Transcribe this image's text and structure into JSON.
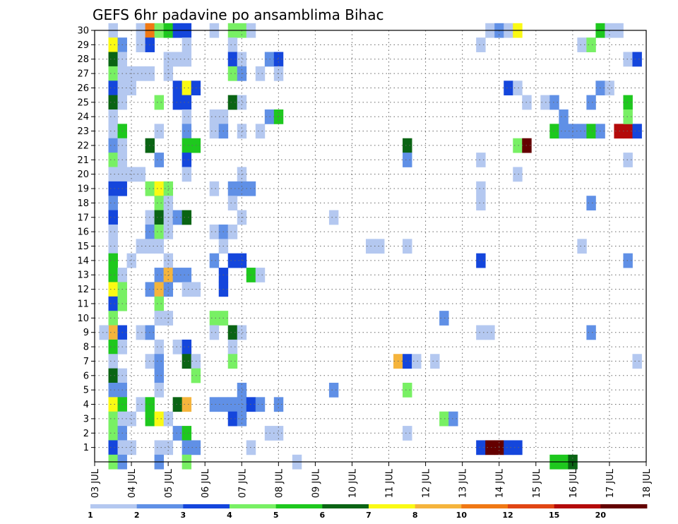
{
  "chart_data": {
    "type": "heatmap",
    "title": "GEFS 6hr padavine po ansamblima Bihac",
    "x_tick_labels": [
      "03 JUL",
      "04 JUL",
      "05 JUL",
      "06 JUL",
      "07 JUL",
      "08 JUL",
      "09 JUL",
      "10 JUL",
      "11 JUL",
      "12 JUL",
      "13 JUL",
      "14 JUL",
      "15 JUL",
      "16 JUL",
      "17 JUL",
      "18 JUL"
    ],
    "x_range_days": [
      0,
      15
    ],
    "y_tick_labels": [
      "1",
      "2",
      "3",
      "4",
      "5",
      "6",
      "7",
      "8",
      "9",
      "10",
      "11",
      "12",
      "13",
      "14",
      "15",
      "16",
      "17",
      "18",
      "19",
      "20",
      "21",
      "22",
      "23",
      "24",
      "25",
      "26",
      "27",
      "28",
      "29",
      "30"
    ],
    "y_range": [
      0,
      30
    ],
    "grid": "dotted",
    "colorbar": {
      "tick_labels": [
        "1",
        "2",
        "3",
        "4",
        "5",
        "6",
        "7",
        "8",
        "10",
        "12",
        "15",
        "20"
      ],
      "bins": [
        {
          "min": 1,
          "max": 2,
          "color": "#b4c8f0"
        },
        {
          "min": 2,
          "max": 3,
          "color": "#6090e6"
        },
        {
          "min": 3,
          "max": 4,
          "color": "#1446dc"
        },
        {
          "min": 4,
          "max": 5,
          "color": "#78f064"
        },
        {
          "min": 5,
          "max": 6,
          "color": "#1ec81e"
        },
        {
          "min": 6,
          "max": 7,
          "color": "#0a6414"
        },
        {
          "min": 7,
          "max": 8,
          "color": "#fafa14"
        },
        {
          "min": 8,
          "max": 10,
          "color": "#f5b43c"
        },
        {
          "min": 10,
          "max": 12,
          "color": "#f07814"
        },
        {
          "min": 12,
          "max": 15,
          "color": "#e14614"
        },
        {
          "min": 15,
          "max": 20,
          "color": "#b40a0a"
        },
        {
          "min": 20,
          "max": 30,
          "color": "#640000"
        }
      ]
    },
    "cells": [
      [
        0.5,
        30,
        1.5
      ],
      [
        0.5,
        29,
        7.5
      ],
      [
        0.5,
        28,
        6.5
      ],
      [
        0.5,
        27,
        4.5
      ],
      [
        0.5,
        26,
        3.5
      ],
      [
        0.5,
        25,
        6.5
      ],
      [
        0.5,
        24,
        1.5
      ],
      [
        0.5,
        23,
        1.5
      ],
      [
        0.5,
        22,
        2.5
      ],
      [
        0.5,
        21,
        4.5
      ],
      [
        0.5,
        20,
        1.5
      ],
      [
        0.5,
        19,
        3.5
      ],
      [
        0.5,
        18,
        2.5
      ],
      [
        0.5,
        17,
        3.5
      ],
      [
        0.5,
        16,
        1.5
      ],
      [
        0.5,
        15,
        1.5
      ],
      [
        0.5,
        14,
        5.5
      ],
      [
        0.5,
        13,
        5.5
      ],
      [
        0.5,
        12,
        7.5
      ],
      [
        0.5,
        11,
        3.5
      ],
      [
        0.5,
        10,
        4.5
      ],
      [
        0.5,
        9,
        9
      ],
      [
        0.5,
        8,
        5.5
      ],
      [
        0.5,
        7,
        1.5
      ],
      [
        0.5,
        6,
        6.5
      ],
      [
        0.5,
        5,
        2.5
      ],
      [
        0.5,
        4,
        7.5
      ],
      [
        0.5,
        3,
        4.5
      ],
      [
        0.5,
        2,
        4.5
      ],
      [
        0.5,
        1,
        3.5
      ],
      [
        0.5,
        0,
        4.5
      ],
      [
        0.75,
        29,
        2.5
      ],
      [
        0.75,
        28,
        1.5
      ],
      [
        0.75,
        27,
        1.5
      ],
      [
        0.75,
        26,
        1.5
      ],
      [
        0.75,
        25,
        1.5
      ],
      [
        0.75,
        23,
        5.5
      ],
      [
        0.75,
        22,
        1.5
      ],
      [
        0.75,
        21,
        1.5
      ],
      [
        0.75,
        20,
        1.5
      ],
      [
        0.75,
        19,
        3.5
      ],
      [
        0.75,
        13,
        1.5
      ],
      [
        0.75,
        12,
        4.5
      ],
      [
        0.75,
        11,
        4.5
      ],
      [
        0.75,
        9,
        3.5
      ],
      [
        0.75,
        8,
        1.5
      ],
      [
        0.75,
        6,
        1.5
      ],
      [
        0.75,
        5,
        2.5
      ],
      [
        0.75,
        4,
        5.5
      ],
      [
        0.75,
        3,
        1.5
      ],
      [
        0.75,
        2,
        2.5
      ],
      [
        0.75,
        1,
        1.5
      ],
      [
        0.75,
        0,
        2.5
      ],
      [
        0.25,
        9,
        1.5
      ],
      [
        1.0,
        27,
        1.5
      ],
      [
        1.0,
        26,
        1.5
      ],
      [
        1.0,
        20,
        1.5
      ],
      [
        1.0,
        14,
        1.5
      ],
      [
        1.0,
        3,
        1.5
      ],
      [
        1.0,
        1,
        1.5
      ],
      [
        1.25,
        30,
        1.5
      ],
      [
        1.25,
        29,
        1.5
      ],
      [
        1.25,
        27,
        1.5
      ],
      [
        1.25,
        20,
        1.5
      ],
      [
        1.25,
        15,
        1.5
      ],
      [
        1.25,
        9,
        1.5
      ],
      [
        1.25,
        4,
        1.5
      ],
      [
        1.5,
        30,
        10
      ],
      [
        1.5,
        29,
        3.5
      ],
      [
        1.5,
        27,
        1.5
      ],
      [
        1.5,
        22,
        6.5
      ],
      [
        1.5,
        19,
        4.5
      ],
      [
        1.5,
        17,
        1.5
      ],
      [
        1.5,
        16,
        2.5
      ],
      [
        1.5,
        15,
        1.5
      ],
      [
        1.5,
        12,
        2.5
      ],
      [
        1.5,
        9,
        2.5
      ],
      [
        1.5,
        7,
        1.5
      ],
      [
        1.5,
        4,
        5.5
      ],
      [
        1.5,
        3,
        5.5
      ],
      [
        1.75,
        30,
        4.5
      ],
      [
        1.75,
        25,
        4.5
      ],
      [
        1.75,
        23,
        1.5
      ],
      [
        1.75,
        21,
        2.5
      ],
      [
        1.75,
        19,
        7.5
      ],
      [
        1.75,
        18,
        4.5
      ],
      [
        1.75,
        17,
        6.5
      ],
      [
        1.75,
        16,
        4.5
      ],
      [
        1.75,
        15,
        1.5
      ],
      [
        1.75,
        13,
        2.5
      ],
      [
        1.75,
        12,
        9
      ],
      [
        1.75,
        11,
        4.5
      ],
      [
        1.75,
        10,
        1.5
      ],
      [
        1.75,
        8,
        1.5
      ],
      [
        1.75,
        7,
        2.5
      ],
      [
        1.75,
        6,
        2.5
      ],
      [
        1.75,
        5,
        1.5
      ],
      [
        1.75,
        3,
        7.5
      ],
      [
        1.75,
        1,
        1.5
      ],
      [
        1.75,
        0,
        2.5
      ],
      [
        2.0,
        30,
        5.5
      ],
      [
        2.0,
        28,
        1.5
      ],
      [
        2.0,
        27,
        1.5
      ],
      [
        2.0,
        19,
        4.5
      ],
      [
        2.0,
        18,
        1.5
      ],
      [
        2.0,
        17,
        1.5
      ],
      [
        2.0,
        16,
        1.5
      ],
      [
        2.0,
        14,
        1.5
      ],
      [
        2.0,
        13,
        9
      ],
      [
        2.0,
        12,
        2.5
      ],
      [
        2.0,
        10,
        1.5
      ],
      [
        2.0,
        3,
        1.5
      ],
      [
        2.0,
        1,
        1.5
      ],
      [
        2.25,
        30,
        3.5
      ],
      [
        2.25,
        28,
        1.5
      ],
      [
        2.25,
        26,
        3.5
      ],
      [
        2.25,
        25,
        3.5
      ],
      [
        2.25,
        17,
        2.5
      ],
      [
        2.25,
        13,
        2.5
      ],
      [
        2.25,
        8,
        1.5
      ],
      [
        2.25,
        4,
        6.5
      ],
      [
        2.25,
        2,
        2.5
      ],
      [
        2.5,
        30,
        3.5
      ],
      [
        2.5,
        29,
        1.5
      ],
      [
        2.5,
        28,
        1.5
      ],
      [
        2.5,
        26,
        7.5
      ],
      [
        2.5,
        25,
        3.5
      ],
      [
        2.5,
        24,
        1.5
      ],
      [
        2.5,
        23,
        2.5
      ],
      [
        2.5,
        22,
        5.5
      ],
      [
        2.5,
        21,
        3.5
      ],
      [
        2.5,
        20,
        1.5
      ],
      [
        2.5,
        17,
        6.5
      ],
      [
        2.5,
        13,
        2.5
      ],
      [
        2.5,
        12,
        1.5
      ],
      [
        2.5,
        8,
        3.5
      ],
      [
        2.5,
        7,
        6.5
      ],
      [
        2.5,
        4,
        9
      ],
      [
        2.5,
        2,
        5.5
      ],
      [
        2.5,
        1,
        2.5
      ],
      [
        2.5,
        0,
        4.5
      ],
      [
        2.75,
        26,
        3.5
      ],
      [
        2.75,
        22,
        5.5
      ],
      [
        2.75,
        12,
        1.5
      ],
      [
        2.75,
        7,
        1.5
      ],
      [
        2.75,
        6,
        4.5
      ],
      [
        2.75,
        1,
        2.5
      ],
      [
        3.25,
        30,
        1.5
      ],
      [
        3.25,
        24,
        1.5
      ],
      [
        3.25,
        23,
        1.5
      ],
      [
        3.25,
        19,
        1.5
      ],
      [
        3.25,
        16,
        1.5
      ],
      [
        3.25,
        14,
        2.5
      ],
      [
        3.25,
        10,
        4.5
      ],
      [
        3.25,
        9,
        1.5
      ],
      [
        3.25,
        4,
        2.5
      ],
      [
        3.5,
        24,
        1.5
      ],
      [
        3.5,
        23,
        2.5
      ],
      [
        3.5,
        16,
        2.5
      ],
      [
        3.5,
        15,
        1.5
      ],
      [
        3.5,
        13,
        3.5
      ],
      [
        3.5,
        12,
        3.5
      ],
      [
        3.5,
        10,
        4.5
      ],
      [
        3.5,
        4,
        2.5
      ],
      [
        3.75,
        30,
        4.5
      ],
      [
        3.75,
        29,
        1.5
      ],
      [
        3.75,
        28,
        3.5
      ],
      [
        3.75,
        27,
        4.5
      ],
      [
        3.75,
        25,
        6.5
      ],
      [
        3.75,
        19,
        2.5
      ],
      [
        3.75,
        18,
        1.5
      ],
      [
        3.75,
        16,
        1.5
      ],
      [
        3.75,
        14,
        3.5
      ],
      [
        3.75,
        9,
        6.5
      ],
      [
        3.75,
        8,
        1.5
      ],
      [
        3.75,
        7,
        4.5
      ],
      [
        3.75,
        4,
        2.5
      ],
      [
        3.75,
        3,
        3.5
      ],
      [
        4.0,
        30,
        4.5
      ],
      [
        4.0,
        28,
        1.5
      ],
      [
        4.0,
        27,
        2.5
      ],
      [
        4.0,
        25,
        1.5
      ],
      [
        4.0,
        23,
        1.5
      ],
      [
        4.0,
        20,
        1.5
      ],
      [
        4.0,
        19,
        2.5
      ],
      [
        4.0,
        17,
        1.5
      ],
      [
        4.0,
        14,
        3.5
      ],
      [
        4.0,
        9,
        1.5
      ],
      [
        4.0,
        5,
        2.5
      ],
      [
        4.0,
        4,
        2.5
      ],
      [
        4.0,
        3,
        2.5
      ],
      [
        4.25,
        30,
        1.5
      ],
      [
        4.25,
        19,
        2.5
      ],
      [
        4.25,
        13,
        5.5
      ],
      [
        4.25,
        4,
        3.5
      ],
      [
        4.25,
        1,
        1.5
      ],
      [
        4.5,
        27,
        1.5
      ],
      [
        4.5,
        23,
        1.5
      ],
      [
        4.5,
        13,
        1.5
      ],
      [
        4.5,
        4,
        2.5
      ],
      [
        4.75,
        28,
        2.5
      ],
      [
        4.75,
        24,
        2.5
      ],
      [
        4.75,
        2,
        1.5
      ],
      [
        5.0,
        28,
        3.5
      ],
      [
        5.0,
        27,
        1.5
      ],
      [
        5.0,
        24,
        5.5
      ],
      [
        5.0,
        4,
        2.5
      ],
      [
        5.0,
        2,
        1.5
      ],
      [
        5.5,
        0,
        1.5
      ],
      [
        6.5,
        17,
        1.5
      ],
      [
        6.5,
        5,
        2.5
      ],
      [
        7.5,
        15,
        1.5
      ],
      [
        7.75,
        15,
        1.5
      ],
      [
        8.5,
        22,
        6.5
      ],
      [
        8.5,
        21,
        2.5
      ],
      [
        8.5,
        15,
        1.5
      ],
      [
        8.5,
        5,
        4.5
      ],
      [
        8.5,
        2,
        1.5
      ],
      [
        8.25,
        7,
        9
      ],
      [
        8.5,
        7,
        3.5
      ],
      [
        8.75,
        7,
        1.5
      ],
      [
        9.25,
        7,
        1.5
      ],
      [
        9.5,
        10,
        2.5
      ],
      [
        9.5,
        3,
        4.5
      ],
      [
        9.75,
        3,
        2.5
      ],
      [
        10.5,
        29,
        1.5
      ],
      [
        10.5,
        21,
        1.5
      ],
      [
        10.5,
        19,
        1.5
      ],
      [
        10.5,
        18,
        1.5
      ],
      [
        10.5,
        14,
        3.5
      ],
      [
        10.5,
        9,
        1.5
      ],
      [
        10.75,
        9,
        1.5
      ],
      [
        10.5,
        1,
        3.5
      ],
      [
        10.75,
        1,
        20
      ],
      [
        11.0,
        1,
        20
      ],
      [
        11.25,
        1,
        3.5
      ],
      [
        11.5,
        1,
        3.5
      ],
      [
        10.75,
        30,
        1.5
      ],
      [
        11.0,
        30,
        2.5
      ],
      [
        11.25,
        30,
        1.5
      ],
      [
        11.5,
        30,
        7.5
      ],
      [
        11.25,
        26,
        3.5
      ],
      [
        11.5,
        26,
        1.5
      ],
      [
        11.5,
        22,
        4.5
      ],
      [
        11.75,
        22,
        20
      ],
      [
        11.5,
        20,
        1.5
      ],
      [
        11.75,
        25,
        1.5
      ],
      [
        12.25,
        25,
        1.5
      ],
      [
        12.5,
        25,
        2.5
      ],
      [
        12.5,
        23,
        5.5
      ],
      [
        12.75,
        23,
        2.5
      ],
      [
        13.0,
        23,
        2.5
      ],
      [
        13.25,
        23,
        2.5
      ],
      [
        13.5,
        23,
        5.5
      ],
      [
        13.75,
        23,
        2.5
      ],
      [
        12.75,
        24,
        2.5
      ],
      [
        12.5,
        0,
        5.5
      ],
      [
        12.75,
        0,
        5.5
      ],
      [
        13.0,
        0,
        6.5
      ],
      [
        13.25,
        29,
        1.5
      ],
      [
        13.5,
        29,
        4.5
      ],
      [
        13.25,
        15,
        1.5
      ],
      [
        13.5,
        25,
        2.5
      ],
      [
        13.5,
        18,
        2.5
      ],
      [
        13.5,
        9,
        2.5
      ],
      [
        13.75,
        26,
        2.5
      ],
      [
        14.0,
        26,
        1.5
      ],
      [
        13.75,
        30,
        5.5
      ],
      [
        14.0,
        30,
        1.5
      ],
      [
        14.25,
        30,
        1.5
      ],
      [
        14.25,
        23,
        17
      ],
      [
        14.5,
        23,
        17
      ],
      [
        14.75,
        23,
        3.5
      ],
      [
        14.5,
        25,
        5.5
      ],
      [
        14.5,
        24,
        4.5
      ],
      [
        14.5,
        28,
        1.5
      ],
      [
        14.75,
        28,
        3.5
      ],
      [
        14.5,
        21,
        1.5
      ],
      [
        14.5,
        14,
        2.5
      ],
      [
        14.75,
        7,
        1.5
      ]
    ]
  }
}
